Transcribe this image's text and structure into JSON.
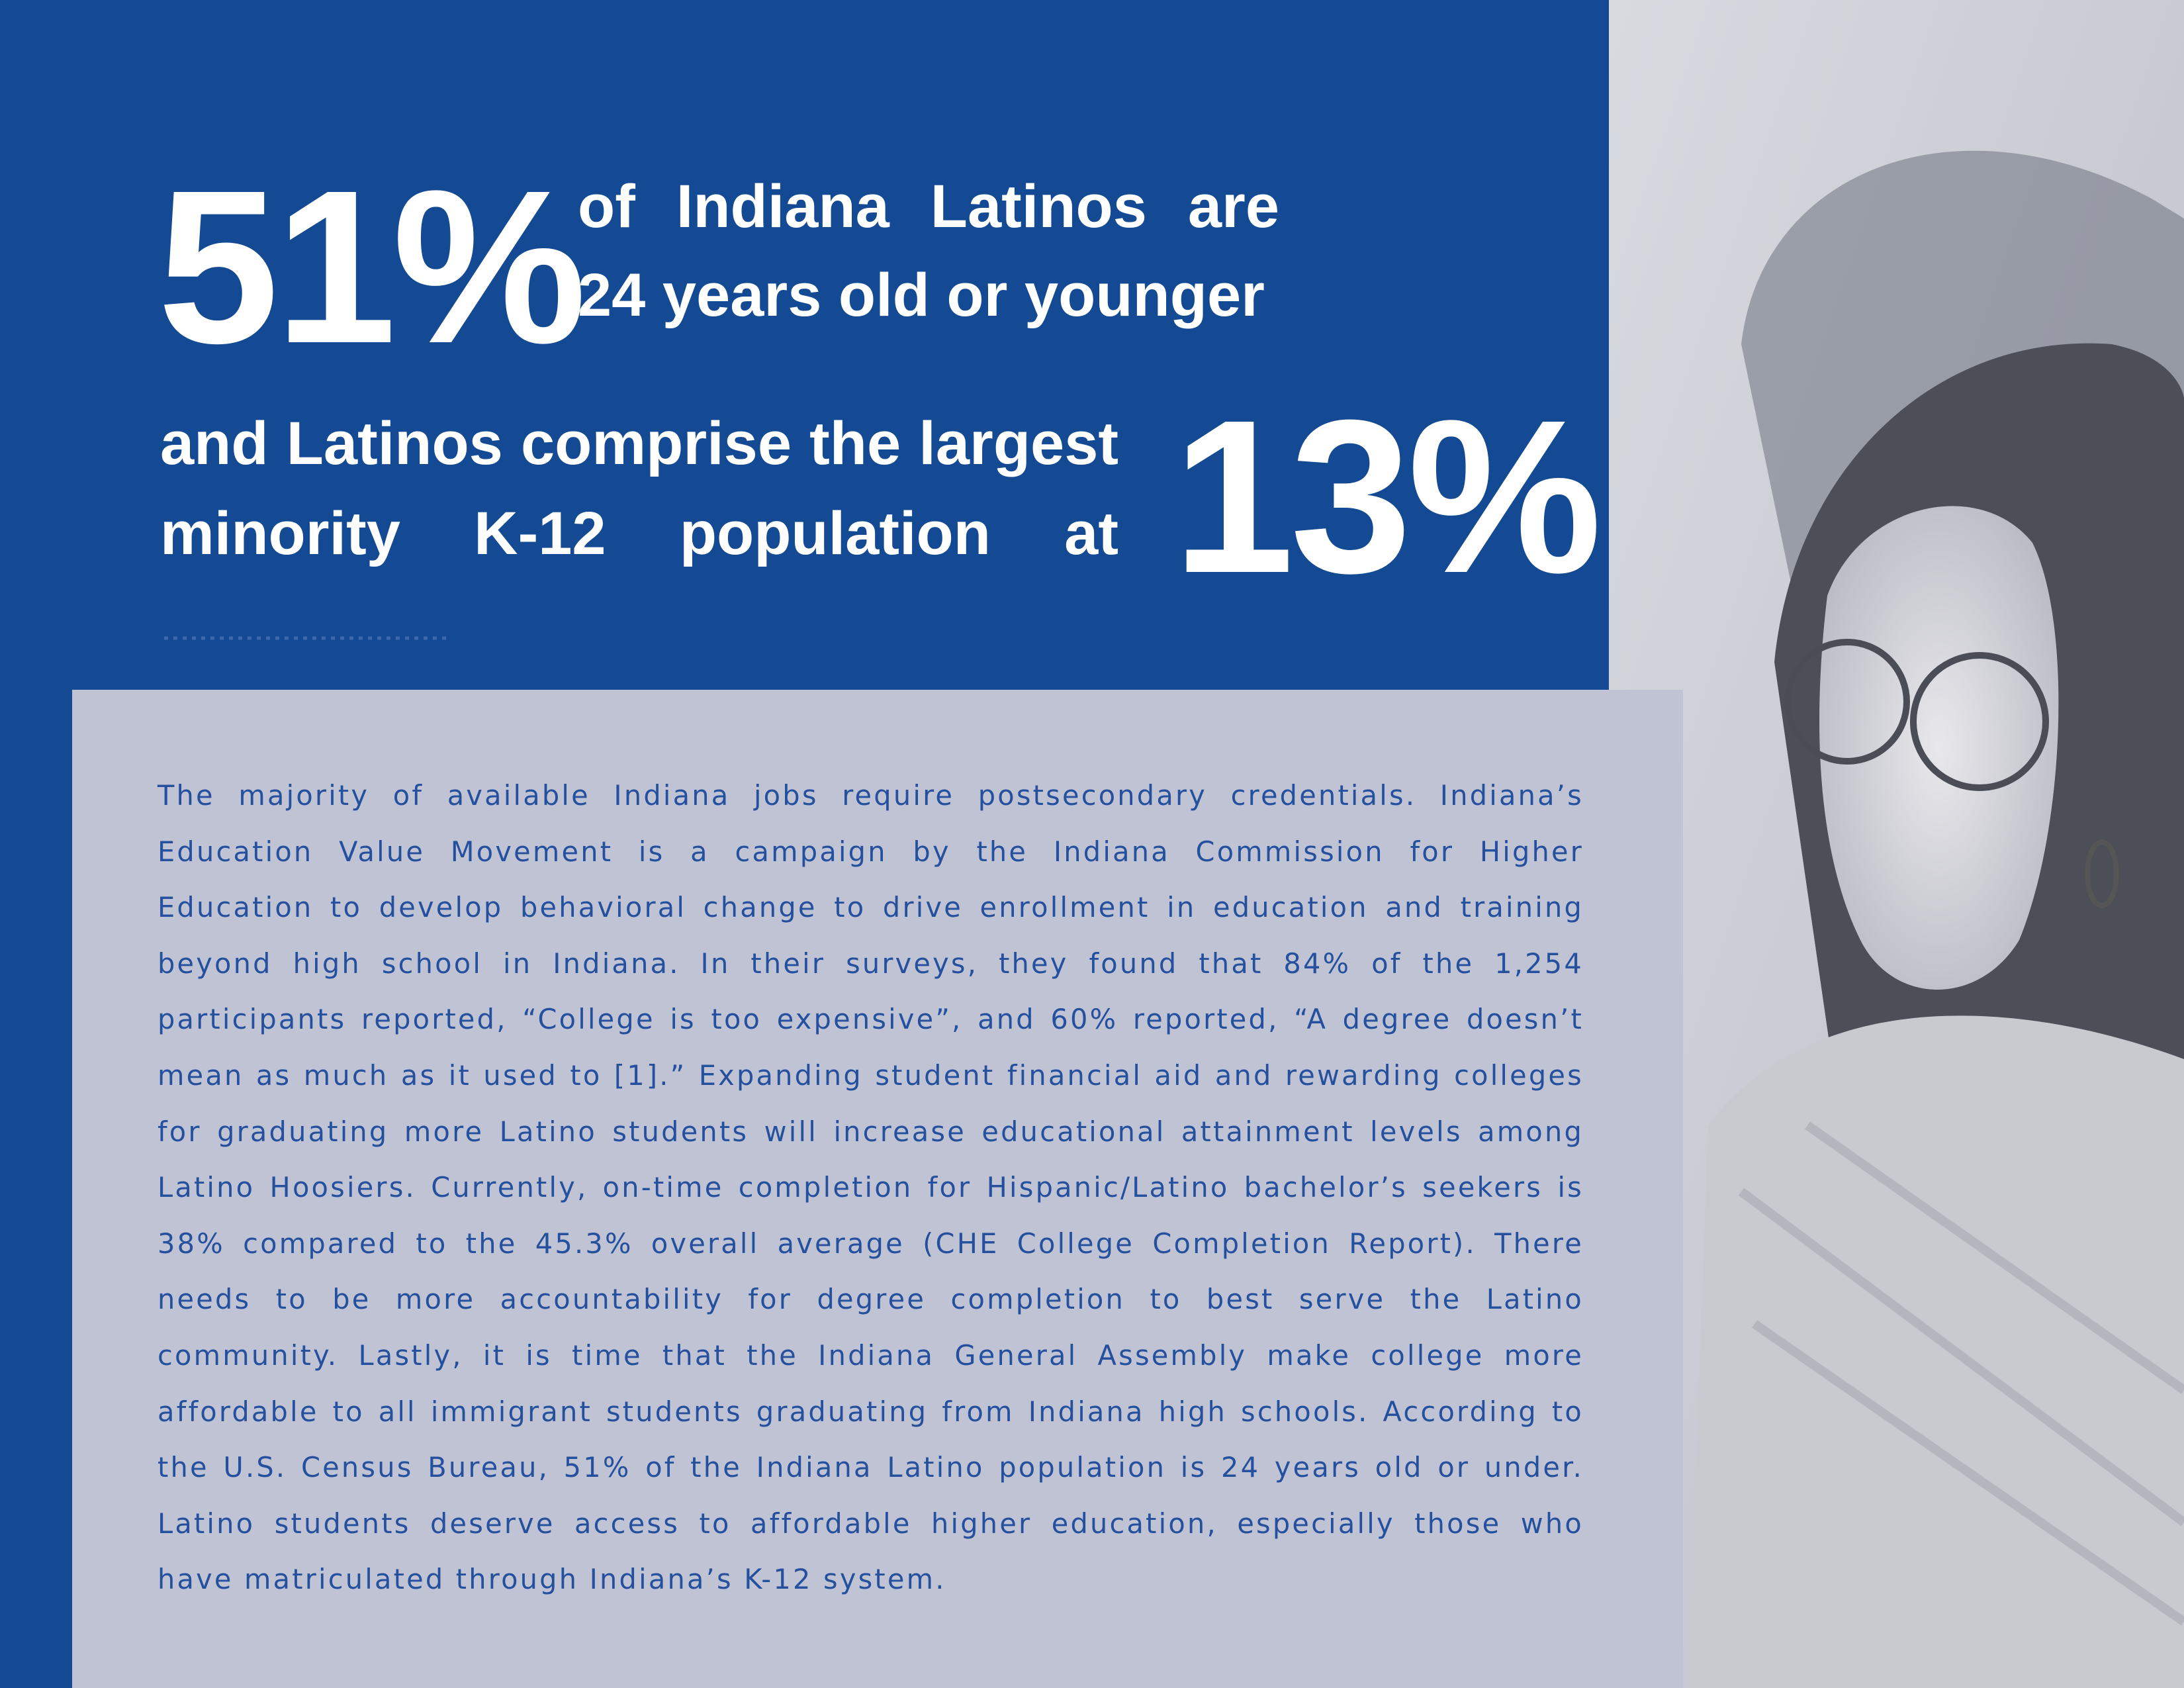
{
  "stat_1": {
    "value": "51%",
    "lines": [
      "of Indiana Latinos are",
      "24 years old or younger"
    ]
  },
  "stat_2": {
    "lines": [
      "and Latinos comprise the largest",
      "minority K-12 population at"
    ],
    "value": "13%"
  },
  "body": "The majority of available Indiana jobs require postsecondary credentials. Indiana’s Education Value Movement is a campaign by the Indiana Commission for Higher Education to develop behavioral change to drive enrollment in education and training beyond high school in Indiana. In their surveys, they found that 84% of the 1,254 participants reported, “College is too expensive”, and 60% reported, “A degree doesn’t mean as much as it used to [1].” Expanding student financial aid and rewarding colleges for graduating more Latino students will increase educational attainment levels among Latino Hoosiers. Currently, on-time completion for Hispanic/Latino bachelor’s seekers is 38% compared to the 45.3% overall average (CHE College Completion Report). There needs to be more accountability for degree completion to best serve the Latino community. Lastly, it is time that the Indiana General Assembly make college more affordable to all immigrant students graduating from Indiana high schools. According to the U.S. Census Bureau, 51% of the Indiana Latino population is 24 years old or under. Latino students deserve access to affordable higher education, especially those who have matriculated through Indiana’s K-12 system."
}
